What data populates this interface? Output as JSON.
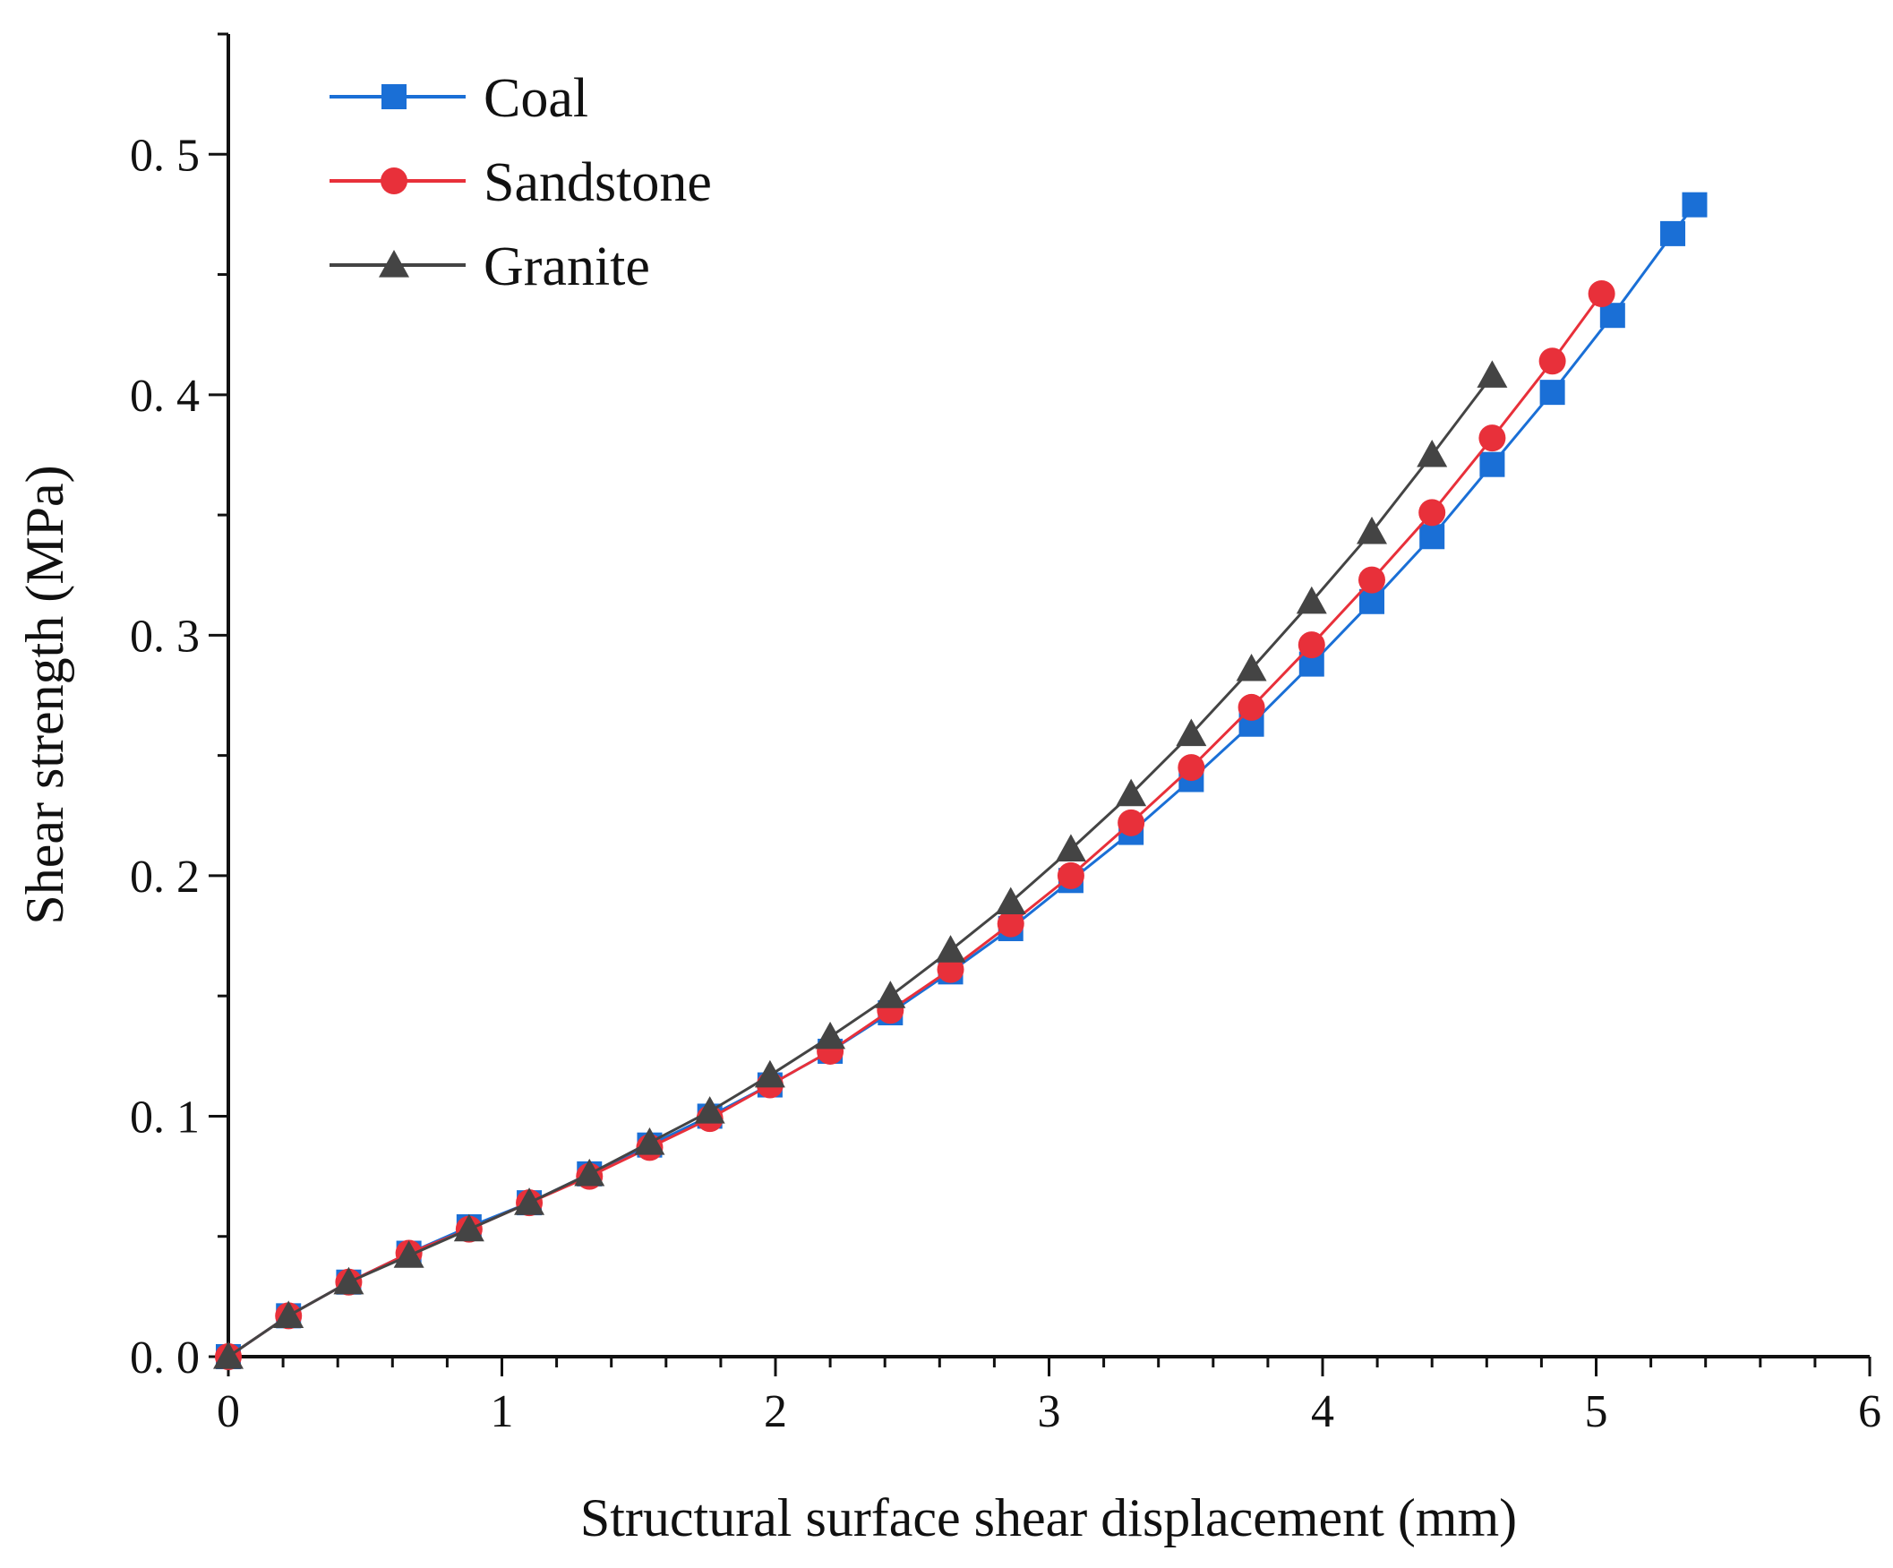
{
  "chart_data": {
    "type": "line",
    "title": "",
    "xlabel": "Structural surface shear displacement (mm)",
    "ylabel": "Shear strength (MPa)",
    "xlim": [
      0,
      6
    ],
    "ylim": [
      0,
      0.55
    ],
    "xticks": [
      0,
      1,
      2,
      3,
      4,
      5,
      6
    ],
    "xtick_labels": [
      "0",
      "1",
      "2",
      "3",
      "4",
      "5",
      "6"
    ],
    "yticks": [
      0.0,
      0.1,
      0.2,
      0.3,
      0.4,
      0.5
    ],
    "ytick_labels": [
      "0. 0",
      "0. 1",
      "0. 2",
      "0. 3",
      "0. 4",
      "0. 5"
    ],
    "grid": false,
    "legend_position": "top-left",
    "series": [
      {
        "name": "Coal",
        "color": "#1a6fd6",
        "marker": "square",
        "x": [
          0,
          0.22,
          0.44,
          0.66,
          0.88,
          1.1,
          1.32,
          1.54,
          1.76,
          1.98,
          2.2,
          2.42,
          2.64,
          2.86,
          3.08,
          3.3,
          3.52,
          3.74,
          3.96,
          4.18,
          4.4,
          4.62,
          4.84,
          5.06,
          5.28,
          5.36
        ],
        "y": [
          0,
          0.017,
          0.031,
          0.043,
          0.054,
          0.064,
          0.076,
          0.088,
          0.1,
          0.113,
          0.127,
          0.143,
          0.16,
          0.178,
          0.198,
          0.218,
          0.24,
          0.263,
          0.288,
          0.314,
          0.341,
          0.371,
          0.401,
          0.433,
          0.467,
          0.479
        ]
      },
      {
        "name": "Sandstone",
        "color": "#e8303a",
        "marker": "circle",
        "x": [
          0,
          0.22,
          0.44,
          0.66,
          0.88,
          1.1,
          1.32,
          1.54,
          1.76,
          1.98,
          2.2,
          2.42,
          2.64,
          2.86,
          3.08,
          3.3,
          3.52,
          3.74,
          3.96,
          4.18,
          4.4,
          4.62,
          4.84,
          5.02
        ],
        "y": [
          0,
          0.017,
          0.031,
          0.043,
          0.053,
          0.064,
          0.075,
          0.087,
          0.099,
          0.113,
          0.127,
          0.144,
          0.161,
          0.18,
          0.2,
          0.222,
          0.245,
          0.27,
          0.296,
          0.323,
          0.351,
          0.382,
          0.414,
          0.442
        ]
      },
      {
        "name": "Granite",
        "color": "#444444",
        "marker": "triangle",
        "x": [
          0,
          0.22,
          0.44,
          0.66,
          0.88,
          1.1,
          1.32,
          1.54,
          1.76,
          1.98,
          2.2,
          2.42,
          2.64,
          2.86,
          3.08,
          3.3,
          3.52,
          3.74,
          3.96,
          4.18,
          4.4,
          4.62
        ],
        "y": [
          0,
          0.017,
          0.031,
          0.042,
          0.053,
          0.064,
          0.076,
          0.089,
          0.102,
          0.117,
          0.133,
          0.15,
          0.169,
          0.189,
          0.211,
          0.234,
          0.259,
          0.286,
          0.314,
          0.343,
          0.375,
          0.408
        ]
      }
    ]
  }
}
